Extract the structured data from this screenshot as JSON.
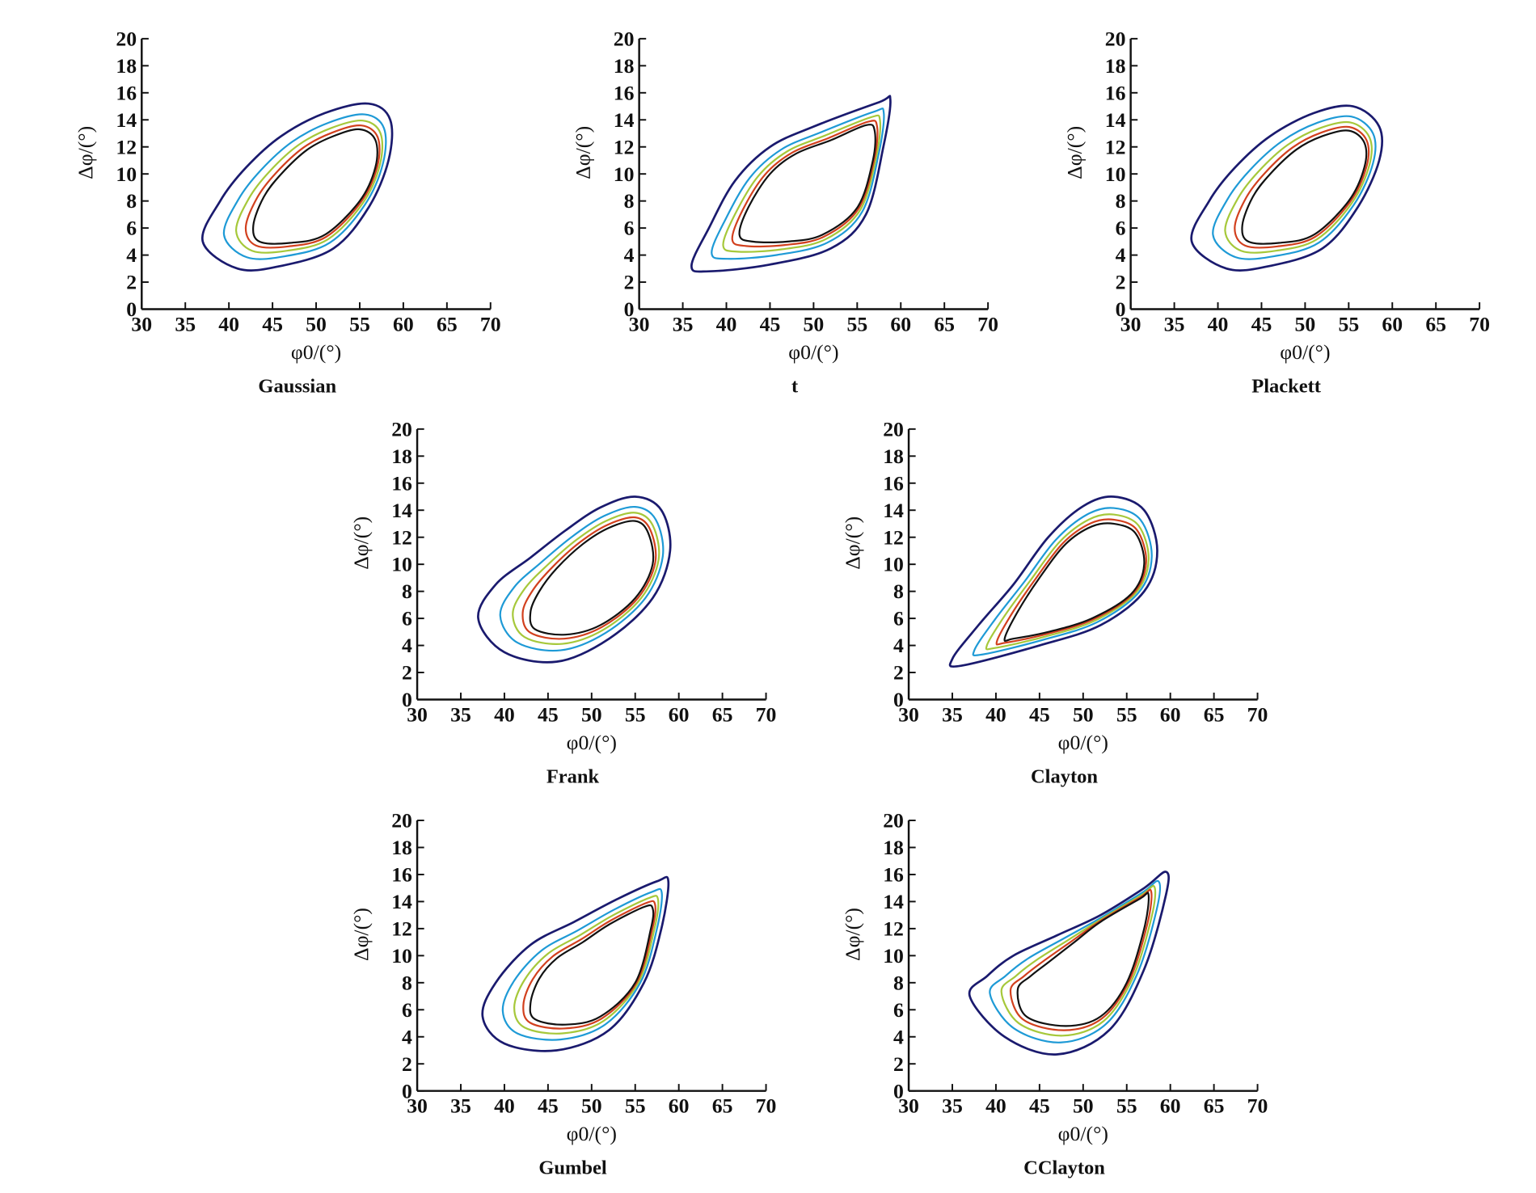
{
  "chart_data": [
    {
      "type": "contour",
      "title": "Gaussian",
      "xlabel": "φ0/(°)",
      "ylabel": "Δφ/(°)",
      "xlim": [
        30,
        70
      ],
      "ylim": [
        0,
        20
      ],
      "outer": [
        [
          37,
          5
        ],
        [
          39,
          8
        ],
        [
          42,
          10.5
        ],
        [
          46,
          12.8
        ],
        [
          51,
          14.5
        ],
        [
          56,
          15.2
        ],
        [
          58.5,
          14
        ],
        [
          58.3,
          11
        ],
        [
          56,
          7.5
        ],
        [
          52,
          4.5
        ],
        [
          46,
          3.2
        ],
        [
          41,
          3
        ]
      ],
      "inner": [
        [
          42.8,
          6.2
        ],
        [
          44,
          8.3
        ],
        [
          46,
          10
        ],
        [
          49,
          11.8
        ],
        [
          52,
          12.8
        ],
        [
          55,
          13.3
        ],
        [
          56.8,
          12.5
        ],
        [
          56.8,
          10.5
        ],
        [
          55,
          8
        ],
        [
          51,
          5.5
        ],
        [
          47,
          4.9
        ],
        [
          43.5,
          5
        ]
      ]
    },
    {
      "type": "contour",
      "title": "t",
      "xlabel": "φ0/(°)",
      "ylabel": "Δφ/(°)",
      "xlim": [
        30,
        70
      ],
      "ylim": [
        0,
        20
      ],
      "outer": [
        [
          36,
          3.2
        ],
        [
          38,
          6
        ],
        [
          41,
          9.5
        ],
        [
          45,
          12
        ],
        [
          50,
          13.5
        ],
        [
          57.5,
          15.3
        ],
        [
          58.8,
          15.5
        ],
        [
          58,
          12
        ],
        [
          56,
          7
        ],
        [
          52,
          4.5
        ],
        [
          45,
          3.3
        ],
        [
          38,
          2.8
        ]
      ],
      "inner": [
        [
          41.5,
          5.5
        ],
        [
          42.5,
          7.5
        ],
        [
          45,
          10
        ],
        [
          48,
          11.5
        ],
        [
          52,
          12.5
        ],
        [
          56,
          13.6
        ],
        [
          57,
          13.2
        ],
        [
          56.8,
          11
        ],
        [
          55,
          7.5
        ],
        [
          51,
          5.5
        ],
        [
          47,
          5
        ],
        [
          43,
          5
        ]
      ]
    },
    {
      "type": "contour",
      "title": "Plackett",
      "xlabel": "φ0/(°)",
      "ylabel": "Δφ/(°)",
      "xlim": [
        30,
        70
      ],
      "ylim": [
        0,
        20
      ],
      "outer": [
        [
          37,
          5
        ],
        [
          39,
          8
        ],
        [
          42,
          10.5
        ],
        [
          46,
          12.8
        ],
        [
          51,
          14.5
        ],
        [
          55.5,
          15
        ],
        [
          58.5,
          13.5
        ],
        [
          58.5,
          11
        ],
        [
          56,
          7.5
        ],
        [
          52,
          4.5
        ],
        [
          46,
          3.2
        ],
        [
          41,
          3
        ]
      ],
      "inner": [
        [
          42.8,
          6.2
        ],
        [
          44,
          8.3
        ],
        [
          46,
          10
        ],
        [
          49,
          11.8
        ],
        [
          52,
          12.8
        ],
        [
          55,
          13.2
        ],
        [
          56.8,
          12.3
        ],
        [
          56.8,
          10.5
        ],
        [
          55,
          8
        ],
        [
          51,
          5.5
        ],
        [
          47,
          4.9
        ],
        [
          43.5,
          5
        ]
      ]
    },
    {
      "type": "contour",
      "title": "Frank",
      "xlabel": "φ0/(°)",
      "ylabel": "Δφ/(°)",
      "xlim": [
        30,
        70
      ],
      "ylim": [
        0,
        20
      ],
      "outer": [
        [
          37,
          6
        ],
        [
          39,
          8.5
        ],
        [
          43,
          10.5
        ],
        [
          47,
          12.5
        ],
        [
          51,
          14.2
        ],
        [
          55,
          15
        ],
        [
          58,
          14
        ],
        [
          59,
          11
        ],
        [
          57,
          7.5
        ],
        [
          52,
          4.5
        ],
        [
          46,
          2.8
        ],
        [
          40,
          3.5
        ]
      ],
      "inner": [
        [
          43,
          6.5
        ],
        [
          44,
          8
        ],
        [
          46,
          9.7
        ],
        [
          49,
          11.5
        ],
        [
          52,
          12.7
        ],
        [
          55,
          13.2
        ],
        [
          56.5,
          12.3
        ],
        [
          57,
          10
        ],
        [
          55,
          7.5
        ],
        [
          51,
          5.5
        ],
        [
          47,
          4.8
        ],
        [
          43.5,
          5.2
        ]
      ]
    },
    {
      "type": "contour",
      "title": "Clayton",
      "xlabel": "φ0/(°)",
      "ylabel": "Δφ/(°)",
      "xlim": [
        30,
        70
      ],
      "ylim": [
        0,
        20
      ],
      "outer": [
        [
          35,
          3
        ],
        [
          38,
          5.5
        ],
        [
          42,
          8.5
        ],
        [
          46,
          12
        ],
        [
          50,
          14.3
        ],
        [
          53.5,
          15
        ],
        [
          57,
          14
        ],
        [
          58.5,
          11
        ],
        [
          57,
          8
        ],
        [
          52,
          5.5
        ],
        [
          45,
          4
        ],
        [
          36,
          2.5
        ]
      ],
      "inner": [
        [
          41,
          4.5
        ],
        [
          42.5,
          6.5
        ],
        [
          45,
          9
        ],
        [
          48,
          11.5
        ],
        [
          51,
          12.8
        ],
        [
          53.5,
          13
        ],
        [
          56,
          12.3
        ],
        [
          57,
          10
        ],
        [
          55.5,
          7.8
        ],
        [
          51,
          6
        ],
        [
          46,
          5
        ],
        [
          42,
          4.5
        ]
      ]
    },
    {
      "type": "contour",
      "title": "Gumbel",
      "xlabel": "φ0/(°)",
      "ylabel": "Δφ/(°)",
      "xlim": [
        30,
        70
      ],
      "ylim": [
        0,
        20
      ],
      "outer": [
        [
          37.5,
          5.5
        ],
        [
          39,
          8
        ],
        [
          43,
          10.8
        ],
        [
          48,
          12.5
        ],
        [
          53,
          14.2
        ],
        [
          57.5,
          15.5
        ],
        [
          58.8,
          15.5
        ],
        [
          58,
          12
        ],
        [
          56,
          8
        ],
        [
          52,
          4.5
        ],
        [
          46,
          3
        ],
        [
          40,
          3.5
        ]
      ],
      "inner": [
        [
          43,
          6.5
        ],
        [
          44,
          8.3
        ],
        [
          46,
          9.8
        ],
        [
          49,
          11
        ],
        [
          52,
          12.3
        ],
        [
          56,
          13.6
        ],
        [
          57,
          13.5
        ],
        [
          56.8,
          12
        ],
        [
          55,
          8
        ],
        [
          51,
          5.5
        ],
        [
          47,
          4.9
        ],
        [
          43.5,
          5.3
        ]
      ]
    },
    {
      "type": "contour",
      "title": "CClayton",
      "xlabel": "φ0/(°)",
      "ylabel": "Δφ/(°)",
      "xlim": [
        30,
        70
      ],
      "ylim": [
        0,
        20
      ],
      "outer": [
        [
          37,
          7
        ],
        [
          39,
          8.5
        ],
        [
          42,
          10
        ],
        [
          47,
          11.5
        ],
        [
          52,
          13
        ],
        [
          57,
          15
        ],
        [
          59.5,
          16.2
        ],
        [
          59.5,
          14.5
        ],
        [
          57,
          9
        ],
        [
          53,
          4.5
        ],
        [
          47,
          2.7
        ],
        [
          41,
          4
        ]
      ],
      "inner": [
        [
          42.5,
          7.5
        ],
        [
          44,
          8.5
        ],
        [
          46,
          9.5
        ],
        [
          49,
          11
        ],
        [
          52,
          12.5
        ],
        [
          56.5,
          14.2
        ],
        [
          57.5,
          14.5
        ],
        [
          57,
          12
        ],
        [
          55,
          8
        ],
        [
          52,
          5.5
        ],
        [
          48,
          4.8
        ],
        [
          43.5,
          5.5
        ]
      ]
    }
  ],
  "xticks": [
    30,
    35,
    40,
    45,
    50,
    55,
    60,
    65,
    70
  ],
  "yticks": [
    0,
    2,
    4,
    6,
    8,
    10,
    12,
    14,
    16,
    18,
    20
  ],
  "levels": [
    {
      "t": 0,
      "color": "#1a1a6e"
    },
    {
      "t": 0.42,
      "color": "#1e9ad6"
    },
    {
      "t": 0.66,
      "color": "#a6c83a"
    },
    {
      "t": 0.85,
      "color": "#d2401e"
    },
    {
      "t": 1,
      "color": "#111111"
    }
  ]
}
